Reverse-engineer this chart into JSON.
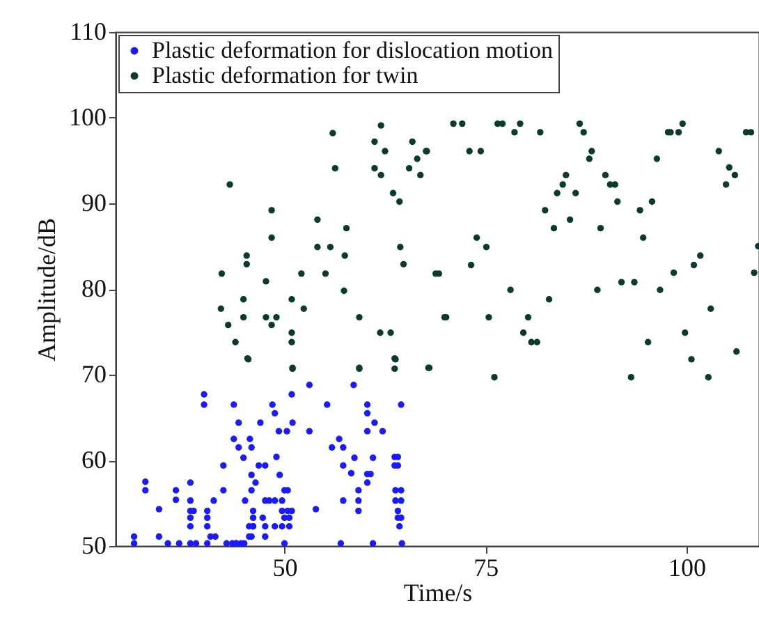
{
  "chart_data": {
    "type": "scatter",
    "xlabel": "Time/s",
    "ylabel": "Amplitude/dB",
    "xlim": [
      29,
      109
    ],
    "xticks": [
      50,
      75,
      100
    ],
    "ylim": [
      50,
      110
    ],
    "yticks": [
      50,
      60,
      70,
      80,
      90,
      100,
      110
    ],
    "grid": false,
    "legend": "top left",
    "marker": "circle",
    "series": [
      {
        "name": "Plastic deformation for dislocation motion",
        "color": "#1a1aff",
        "x": [
          31.3,
          31.3,
          32.7,
          32.7,
          34.4,
          34.4,
          36.5,
          36.5,
          36.9,
          38.3,
          38.3,
          38.3,
          38.3,
          38.3,
          38.3,
          38.7,
          40.0,
          40.0,
          40.4,
          40.4,
          40.4,
          40.4,
          41.2,
          40.8,
          41.4,
          42.4,
          42.4,
          43.7,
          43.7,
          44.3,
          44.9,
          45.9,
          45.7,
          45.9,
          46.4,
          45.9,
          45.1,
          44.3,
          47.0,
          46.8,
          47.6,
          48.5,
          48.8,
          49.3,
          50.3,
          49.0,
          49.4,
          50.9,
          51.0,
          53.1,
          53.1,
          53.9,
          55.3,
          55.9,
          56.8,
          57.3,
          57.3,
          57.3,
          58.3,
          58.6,
          58.7,
          59.2,
          59.2,
          59.2,
          60.3,
          60.3,
          61.2,
          60.3,
          60.3,
          60.7,
          61.0,
          60.3,
          62.2,
          63.7,
          64.1,
          63.7,
          64.1,
          63.8,
          64.5,
          63.8,
          64.5,
          64.1,
          64.1,
          64.5,
          64.3,
          64.5,
          64.6,
          47.6,
          48.1,
          48.8,
          49.7,
          50.0,
          50.4,
          49.7,
          50.4,
          50.9,
          50.0,
          50.6,
          49.7,
          50.6,
          47.3,
          47.6,
          48.8,
          45.6,
          46.1,
          45.9,
          45.6,
          42.8,
          43.5,
          44.0,
          44.6,
          45.0,
          47.6,
          46.1,
          46.1,
          46.1,
          35.5,
          39.0,
          44.0,
          50.0,
          57.0,
          61.0
        ],
        "values": [
          51.1,
          50.3,
          57.5,
          56.5,
          54.3,
          51.1,
          56.5,
          55.4,
          50.3,
          57.4,
          55.3,
          54.1,
          53.3,
          52.3,
          50.3,
          54.1,
          67.7,
          66.5,
          54.1,
          53.3,
          52.3,
          50.3,
          55.3,
          51.1,
          51.1,
          59.4,
          56.5,
          66.5,
          62.5,
          61.5,
          60.3,
          61.5,
          62.5,
          58.3,
          57.4,
          56.5,
          55.3,
          64.4,
          64.4,
          59.4,
          59.4,
          66.5,
          65.5,
          63.4,
          63.4,
          60.4,
          58.3,
          67.7,
          64.4,
          68.8,
          63.4,
          54.3,
          66.5,
          61.5,
          62.5,
          61.5,
          59.4,
          55.3,
          58.5,
          68.8,
          60.3,
          56.5,
          55.3,
          54.1,
          66.5,
          65.5,
          64.4,
          63.4,
          58.4,
          58.4,
          60.3,
          57.4,
          63.4,
          60.4,
          60.4,
          59.4,
          59.4,
          56.5,
          56.5,
          55.3,
          55.3,
          54.1,
          53.3,
          53.3,
          52.3,
          66.5,
          50.3,
          55.3,
          55.3,
          55.3,
          55.3,
          56.5,
          56.5,
          54.1,
          54.1,
          54.1,
          53.3,
          53.3,
          52.3,
          52.3,
          53.3,
          52.3,
          52.3,
          52.3,
          52.3,
          51.1,
          51.1,
          50.3,
          50.3,
          50.3,
          50.3,
          50.3,
          51.1,
          54.1,
          53.3,
          52.3,
          50.3,
          50.3,
          50.3,
          50.3,
          50.3,
          50.3
        ]
      },
      {
        "name": "Plastic deformation for twin",
        "color": "#0a3a30",
        "x": [
          45.4,
          51.0,
          59.3,
          63.7,
          63.7,
          56.0,
          62.0,
          61.2,
          62.5,
          65.9,
          67.6,
          56.3,
          61.2,
          65.5,
          66.9,
          66.5,
          62.0,
          43.2,
          63.5,
          64.3,
          48.4,
          48.4,
          54.1,
          57.7,
          54.1,
          55.7,
          57.5,
          64.4,
          64.8,
          45.3,
          45.3,
          42.2,
          47.7,
          52.1,
          55.1,
          68.8,
          69.2,
          57.4,
          44.9,
          50.9,
          42.1,
          52.4,
          44.9,
          47.7,
          49.0,
          59.3,
          69.9,
          43.0,
          48.4,
          50.9,
          50.9,
          61.9,
          63.2,
          43.9,
          45.5,
          63.8,
          51.0,
          59.3,
          68.0,
          71.0,
          72.1,
          76.5,
          77.1,
          79.3,
          86.7,
          97.7,
          98.0,
          99.5,
          107.4,
          108.0,
          78.6,
          81.8,
          87.2,
          99.0,
          67.7,
          73.0,
          74.4,
          88.2,
          104.0,
          87.9,
          96.3,
          105.3,
          106.0,
          104.9,
          85.0,
          84.6,
          83.9,
          86.2,
          89.9,
          90.5,
          91.1,
          91.4,
          82.4,
          83.5,
          85.5,
          89.3,
          94.2,
          95.7,
          94.6,
          73.9,
          75.1,
          73.2,
          78.1,
          82.9,
          88.9,
          91.9,
          93.5,
          96.7,
          98.4,
          100.9,
          101.7,
          103.0,
          108.4,
          108.9,
          70.1,
          75.4,
          80.3,
          79.7,
          80.7,
          81.4,
          95.2,
          99.8,
          100.6,
          106.2,
          67.9,
          76.1,
          93.1,
          102.7
        ],
        "values": [
          71.9,
          70.7,
          70.7,
          71.9,
          70.7,
          98.2,
          99.1,
          97.2,
          96.1,
          97.2,
          96.1,
          94.1,
          94.1,
          94.1,
          93.3,
          95.2,
          93.3,
          92.2,
          91.2,
          90.2,
          89.2,
          86.0,
          88.1,
          87.1,
          84.9,
          84.9,
          83.9,
          84.9,
          82.9,
          83.9,
          82.9,
          81.8,
          80.9,
          81.8,
          81.8,
          81.8,
          81.8,
          79.8,
          78.8,
          78.8,
          77.7,
          77.7,
          76.7,
          76.7,
          76.7,
          76.7,
          76.7,
          75.8,
          75.8,
          74.9,
          73.8,
          74.9,
          74.9,
          73.8,
          71.8,
          71.8,
          70.8,
          70.8,
          70.8,
          99.3,
          99.3,
          99.3,
          99.3,
          99.3,
          99.3,
          98.3,
          98.3,
          99.3,
          98.3,
          98.3,
          98.3,
          98.3,
          98.3,
          98.3,
          96.1,
          96.1,
          96.1,
          96.1,
          96.1,
          95.2,
          95.2,
          94.2,
          93.3,
          92.2,
          93.3,
          92.2,
          91.2,
          91.2,
          93.3,
          92.2,
          92.2,
          90.2,
          89.2,
          87.1,
          88.1,
          87.1,
          89.2,
          90.2,
          86.0,
          86.0,
          84.9,
          82.8,
          79.9,
          78.8,
          79.9,
          80.8,
          80.8,
          79.9,
          81.9,
          82.8,
          83.9,
          77.7,
          81.9,
          85.0,
          76.7,
          76.7,
          76.7,
          74.9,
          73.8,
          73.8,
          73.8,
          74.9,
          71.8,
          72.7,
          70.8,
          69.7,
          69.7,
          69.7
        ]
      }
    ]
  }
}
